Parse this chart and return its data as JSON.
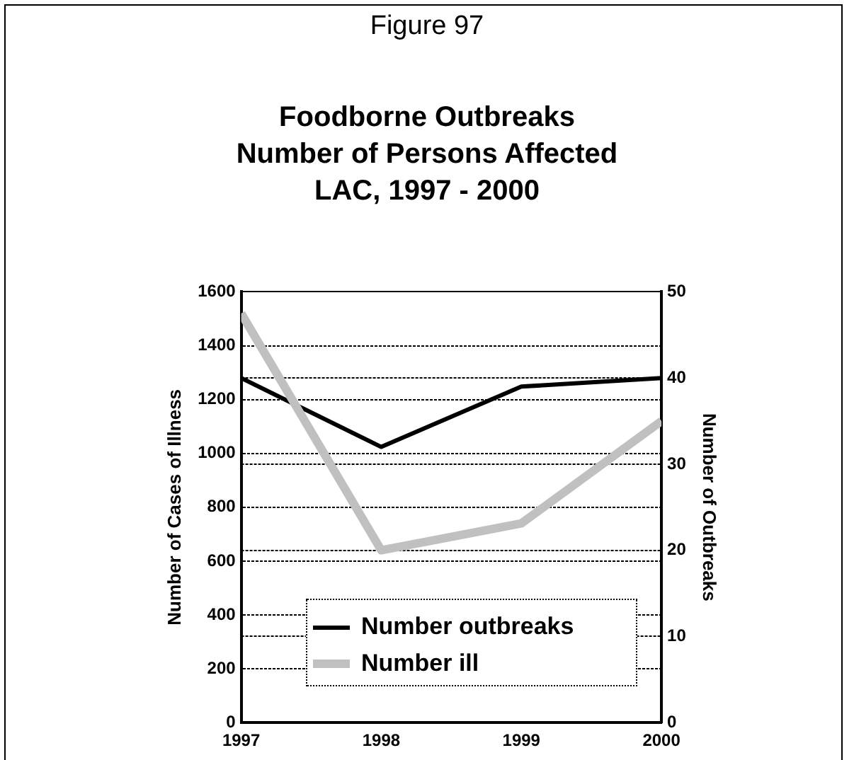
{
  "chart_data": {
    "type": "line",
    "title": "Foodborne Outbreaks\nNumber of Persons Affected\nLAC, 1997 - 2000",
    "annotations": [
      "Figure 97"
    ],
    "ylabel": "Number of Cases of Illness",
    "y2label": "Number of Outbreaks",
    "x": [
      1997,
      1998,
      1999,
      2000
    ],
    "xlim": [
      1997,
      2000
    ],
    "xticks": [
      1997,
      1998,
      1999,
      2000
    ],
    "ylim": [
      0,
      1600
    ],
    "yticks": [
      0,
      200,
      400,
      600,
      800,
      1000,
      1200,
      1400,
      1600
    ],
    "y2lim": [
      0,
      50
    ],
    "y2ticks": [
      0,
      10,
      20,
      30,
      40,
      50
    ],
    "series": [
      {
        "name": "Number outbreaks",
        "color": "#000000",
        "values": [
          40,
          32,
          39,
          40
        ],
        "axis": "y2"
      },
      {
        "name": "Number ill",
        "color": "#c0c0c0",
        "values": [
          1520,
          640,
          740,
          1120
        ]
      }
    ],
    "grid": "y",
    "legend": "bottom",
    "marker": "none",
    "line_style": "solid"
  }
}
